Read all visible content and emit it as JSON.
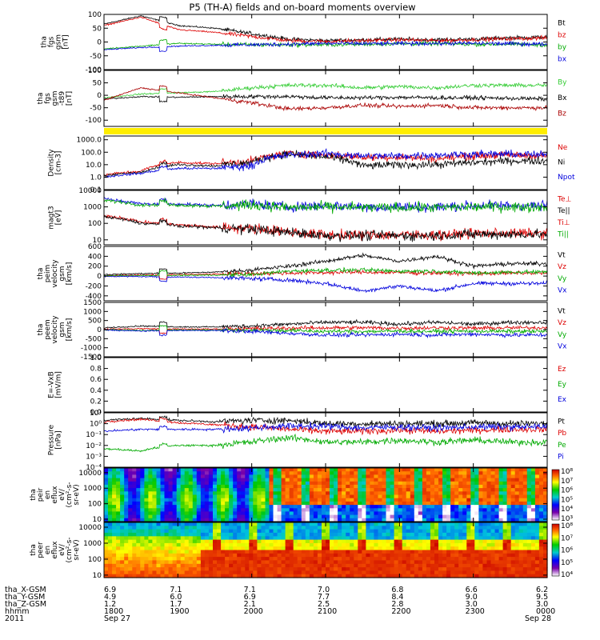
{
  "title": "P5 (TH-A) fields and on-board moments overview",
  "panels": [
    {
      "id": "fgs",
      "ylabel": [
        "tha",
        "fgs",
        "gsm",
        "[nT]"
      ],
      "ticks": [
        "100",
        "50",
        "0",
        "-50",
        "-100"
      ],
      "tick_vals": [
        100,
        50,
        0,
        -50,
        -100
      ],
      "ylim": [
        -100,
        100
      ],
      "scale": "linear",
      "legend": [
        {
          "label": "Bt",
          "color": "#000000"
        },
        {
          "label": "bz",
          "color": "#dd0000"
        },
        {
          "label": "by",
          "color": "#00aa00"
        },
        {
          "label": "bx",
          "color": "#0000dd"
        }
      ]
    },
    {
      "id": "fgs_t89",
      "ylabel": [
        "tha",
        "fgs",
        "gsm",
        "-t89",
        "[nT]"
      ],
      "ticks": [
        "100",
        "50",
        "0",
        "-50",
        "-100"
      ],
      "tick_vals": [
        100,
        50,
        0,
        -50,
        -100
      ],
      "ylim": [
        -125,
        100
      ],
      "scale": "linear",
      "legend": [
        {
          "label": "By",
          "color": "#33cc33"
        },
        {
          "label": "Bx",
          "color": "#000000"
        },
        {
          "label": "Bz",
          "color": "#aa0000"
        }
      ]
    },
    {
      "id": "density",
      "ylabel": [
        "Density",
        "[cm-3]"
      ],
      "ticks": [
        "1000.0",
        "100.0",
        "10.0",
        "1.0",
        "0.1"
      ],
      "tick_vals": [
        1000,
        100,
        10,
        1,
        0.1
      ],
      "ylim": [
        0.1,
        2000
      ],
      "scale": "log",
      "legend": [
        {
          "label": "Ne",
          "color": "#dd0000"
        },
        {
          "label": "Ni",
          "color": "#000000"
        },
        {
          "label": "Npot",
          "color": "#0000dd"
        }
      ]
    },
    {
      "id": "temp",
      "ylabel": [
        "magt3",
        "[eV]"
      ],
      "ticks": [
        "10000",
        "1000",
        "100",
        "10"
      ],
      "tick_vals": [
        10000,
        1000,
        100,
        10
      ],
      "ylim": [
        5,
        10000
      ],
      "scale": "log",
      "legend": [
        {
          "label": "Te⊥",
          "color": "#dd0000"
        },
        {
          "label": "Te||",
          "color": "#000000"
        },
        {
          "label": "Ti⊥",
          "color": "#dd0000"
        },
        {
          "label": "Ti||",
          "color": "#00aa00"
        }
      ]
    },
    {
      "id": "peim",
      "ylabel": [
        "tha",
        "peim",
        "velocity",
        "gsm",
        "[km/s]"
      ],
      "ticks": [
        "600",
        "400",
        "200",
        "0",
        "-200",
        "-400"
      ],
      "tick_vals": [
        600,
        400,
        200,
        0,
        -200,
        -400
      ],
      "ylim": [
        -500,
        600
      ],
      "scale": "linear",
      "legend": [
        {
          "label": "Vt",
          "color": "#000000"
        },
        {
          "label": "Vz",
          "color": "#dd0000"
        },
        {
          "label": "Vy",
          "color": "#00aa00"
        },
        {
          "label": "Vx",
          "color": "#0000dd"
        }
      ]
    },
    {
      "id": "peem",
      "ylabel": [
        "tha",
        "peem",
        "velocity",
        "gsm",
        "[km/s]"
      ],
      "ticks": [
        "1500",
        "1000",
        "500",
        "0",
        "-500",
        "-1000",
        "-1500"
      ],
      "tick_vals": [
        1500,
        1000,
        500,
        0,
        -500,
        -1000,
        -1500
      ],
      "ylim": [
        -1500,
        1500
      ],
      "scale": "linear",
      "legend": [
        {
          "label": "Vt",
          "color": "#000000"
        },
        {
          "label": "Vz",
          "color": "#dd0000"
        },
        {
          "label": "Vy",
          "color": "#00aa00"
        },
        {
          "label": "Vx",
          "color": "#0000dd"
        }
      ]
    },
    {
      "id": "efield",
      "ylabel": [
        "E=-VxB",
        "[mV/m]"
      ],
      "ticks": [
        "1.0",
        "0.8",
        "0.6",
        "0.4",
        "0.2",
        "0.0"
      ],
      "tick_vals": [
        1,
        0.8,
        0.6,
        0.4,
        0.2,
        0
      ],
      "ylim": [
        0,
        1
      ],
      "scale": "linear",
      "legend": [
        {
          "label": "Ez",
          "color": "#dd0000"
        },
        {
          "label": "Ey",
          "color": "#00aa00"
        },
        {
          "label": "Ex",
          "color": "#0000dd"
        }
      ]
    },
    {
      "id": "pressure",
      "ylabel": [
        "Pressure",
        "[nPa]"
      ],
      "ticks": [
        "10¹",
        "10⁰",
        "10⁻¹",
        "10⁻²",
        "10⁻³",
        "10⁻⁴"
      ],
      "tick_vals": [
        10,
        1,
        0.1,
        0.01,
        0.001,
        0.0001
      ],
      "ylim": [
        0.0001,
        10
      ],
      "scale": "log",
      "legend": [
        {
          "label": "Pt",
          "color": "#000000"
        },
        {
          "label": "Pb",
          "color": "#dd0000"
        },
        {
          "label": "Pe",
          "color": "#00aa00"
        },
        {
          "label": "Pi",
          "color": "#0000dd"
        }
      ]
    },
    {
      "id": "peir",
      "ylabel": [
        "tha",
        "peir",
        "en",
        "eflux",
        "eV/",
        "(cm²-s-",
        "sr-eV)"
      ],
      "ticks": [
        "10000",
        "1000",
        "100",
        "10"
      ],
      "tick_vals": [
        10000,
        1000,
        100,
        10
      ],
      "ylim": [
        7,
        20000
      ],
      "scale": "log",
      "colorbar": [
        "10⁸",
        "10⁷",
        "10⁶",
        "10⁵",
        "10⁴",
        "10³"
      ]
    },
    {
      "id": "peer",
      "ylabel": [
        "tha",
        "peer",
        "en",
        "eflux",
        "eV/",
        "(cm²-s-",
        "sr-eV)"
      ],
      "ticks": [
        "10000",
        "1000",
        "100",
        "10"
      ],
      "tick_vals": [
        10000,
        1000,
        100,
        10
      ],
      "ylim": [
        7,
        20000
      ],
      "scale": "log",
      "colorbar": [
        "10⁸",
        "10⁷",
        "10⁶",
        "10⁵",
        "10⁴"
      ]
    }
  ],
  "ephemeris": {
    "labels": [
      "tha_X-GSM",
      "tha_Y-GSM",
      "tha_Z-GSM",
      "hhmm",
      "2011"
    ],
    "columns": [
      {
        "x": "6.9",
        "y": "4.9",
        "z": "1.2",
        "hhmm": "1800",
        "date": "Sep 27"
      },
      {
        "x": "7.1",
        "y": "6.0",
        "z": "1.7",
        "hhmm": "1900",
        "date": ""
      },
      {
        "x": "7.1",
        "y": "6.9",
        "z": "2.1",
        "hhmm": "2000",
        "date": ""
      },
      {
        "x": "7.0",
        "y": "7.7",
        "z": "2.5",
        "hhmm": "2100",
        "date": ""
      },
      {
        "x": "6.8",
        "y": "8.4",
        "z": "2.8",
        "hhmm": "2200",
        "date": ""
      },
      {
        "x": "6.6",
        "y": "9.0",
        "z": "3.0",
        "hhmm": "2300",
        "date": ""
      },
      {
        "x": "6.2",
        "y": "9.5",
        "z": "3.0",
        "hhmm": "0000",
        "date": "Sep 28"
      }
    ]
  },
  "chart_data": {
    "type": "line",
    "title": "P5 (TH-A) fields and on-board moments overview",
    "x_range": [
      "2011-09-27 18:00",
      "2011-09-28 00:00"
    ],
    "x_ticks": [
      "1800",
      "1900",
      "2000",
      "2100",
      "2200",
      "2300",
      "0000"
    ],
    "x_hours": [
      0,
      0.5,
      1,
      1.5,
      2,
      2.5,
      3,
      3.5,
      4,
      4.5,
      5,
      5.5,
      6
    ],
    "panels": [
      {
        "name": "tha fgs gsm [nT]",
        "series": [
          {
            "name": "Bt",
            "values": [
              65,
              95,
              60,
              50,
              30,
              10,
              5,
              8,
              10,
              8,
              10,
              15,
              18
            ]
          },
          {
            "name": "bz",
            "values": [
              60,
              90,
              45,
              35,
              20,
              5,
              2,
              5,
              8,
              5,
              8,
              12,
              15
            ]
          },
          {
            "name": "by",
            "values": [
              -25,
              -15,
              -5,
              -8,
              -10,
              -10,
              -10,
              -8,
              -6,
              -6,
              -8,
              -8,
              -10
            ]
          },
          {
            "name": "bx",
            "values": [
              -28,
              -20,
              -15,
              -12,
              -10,
              -8,
              -5,
              -6,
              -6,
              -5,
              -5,
              -6,
              -8
            ]
          }
        ]
      },
      {
        "name": "tha fgs gsm-t89 [nT]",
        "series": [
          {
            "name": "By",
            "values": [
              -10,
              5,
              10,
              15,
              30,
              40,
              40,
              30,
              35,
              30,
              40,
              40,
              40
            ]
          },
          {
            "name": "Bx",
            "values": [
              -15,
              -5,
              -8,
              -5,
              -5,
              -5,
              -10,
              -10,
              -8,
              -10,
              -10,
              -12,
              -15
            ]
          },
          {
            "name": "Bz",
            "values": [
              -20,
              30,
              10,
              -10,
              -30,
              -55,
              -50,
              -40,
              -45,
              -40,
              -50,
              -50,
              -50
            ]
          }
        ]
      },
      {
        "name": "Density [cm-3]",
        "series": [
          {
            "name": "Ne",
            "values": [
              1.5,
              3,
              15,
              12,
              20,
              80,
              60,
              40,
              40,
              30,
              50,
              60,
              50
            ]
          },
          {
            "name": "Ni",
            "values": [
              1.2,
              2.5,
              10,
              8,
              15,
              70,
              40,
              8,
              10,
              10,
              15,
              20,
              20
            ]
          },
          {
            "name": "Npot",
            "values": [
              1,
              2,
              5,
              5,
              8,
              60,
              80,
              50,
              50,
              60,
              70,
              70,
              60
            ]
          }
        ]
      },
      {
        "name": "magt3 [eV]",
        "series": [
          {
            "name": "Te⊥",
            "values": [
              300,
              120,
              80,
              60,
              50,
              30,
              20,
              20,
              20,
              20,
              25,
              25,
              25
            ]
          },
          {
            "name": "Te||",
            "values": [
              250,
              100,
              70,
              55,
              45,
              28,
              18,
              18,
              18,
              18,
              22,
              22,
              22
            ]
          },
          {
            "name": "Ti⊥",
            "values": [
              3000,
              1500,
              1500,
              1200,
              1500,
              1000,
              1200,
              1000,
              1000,
              1000,
              1200,
              1200,
              1200
            ]
          },
          {
            "name": "Ti||",
            "values": [
              2500,
              1300,
              1300,
              1100,
              1300,
              900,
              1000,
              900,
              900,
              900,
              1000,
              1000,
              1000
            ]
          }
        ]
      },
      {
        "name": "tha peim velocity gsm [km/s]",
        "series": [
          {
            "name": "Vt",
            "values": [
              30,
              50,
              60,
              80,
              120,
              200,
              300,
              420,
              300,
              400,
              200,
              250,
              250
            ]
          },
          {
            "name": "Vz",
            "values": [
              10,
              20,
              30,
              40,
              50,
              60,
              70,
              80,
              70,
              60,
              50,
              60,
              60
            ]
          },
          {
            "name": "Vy",
            "values": [
              5,
              10,
              15,
              20,
              30,
              100,
              120,
              120,
              100,
              100,
              60,
              80,
              80
            ]
          },
          {
            "name": "Vx",
            "values": [
              -5,
              -10,
              -20,
              -30,
              -50,
              -80,
              -150,
              -300,
              -200,
              -300,
              -150,
              -150,
              -150
            ]
          }
        ]
      },
      {
        "name": "tha peem velocity gsm [km/s]",
        "series": [
          {
            "name": "Vt",
            "values": [
              100,
              200,
              150,
              150,
              200,
              300,
              400,
              400,
              300,
              400,
              300,
              400,
              400
            ]
          },
          {
            "name": "Vz",
            "values": [
              20,
              50,
              30,
              30,
              50,
              80,
              100,
              100,
              80,
              100,
              80,
              100,
              100
            ]
          },
          {
            "name": "Vy",
            "values": [
              0,
              -50,
              -20,
              -20,
              -30,
              -50,
              -100,
              -100,
              -80,
              -100,
              -80,
              -100,
              -100
            ]
          },
          {
            "name": "Vx",
            "values": [
              -20,
              -80,
              -50,
              -50,
              -100,
              -200,
              -300,
              -300,
              -250,
              -300,
              -250,
              -300,
              -300
            ]
          }
        ]
      },
      {
        "name": "E=-VxB [mV/m]",
        "series": [
          {
            "name": "Ez",
            "values": []
          },
          {
            "name": "Ey",
            "values": []
          },
          {
            "name": "Ex",
            "values": []
          }
        ]
      },
      {
        "name": "Pressure [nPa]",
        "series": [
          {
            "name": "Pt",
            "values": [
              2,
              3,
              2,
              1.5,
              2,
              2,
              1,
              1,
              1,
              1,
              1.2,
              1,
              1
            ]
          },
          {
            "name": "Pb",
            "values": [
              1.5,
              2.5,
              1.2,
              0.8,
              0.5,
              0.3,
              0.2,
              0.2,
              0.25,
              0.2,
              0.25,
              0.3,
              0.3
            ]
          },
          {
            "name": "Pe",
            "values": [
              0.005,
              0.003,
              0.01,
              0.01,
              0.02,
              0.05,
              0.02,
              0.02,
              0.03,
              0.02,
              0.03,
              0.02,
              0.02
            ]
          },
          {
            "name": "Pi",
            "values": [
              0.2,
              0.3,
              0.3,
              0.3,
              0.4,
              0.6,
              0.6,
              0.4,
              0.5,
              0.4,
              0.5,
              0.5,
              0.5
            ]
          }
        ]
      }
    ],
    "spectrograms": [
      {
        "name": "tha peir en eflux",
        "type": "heatmap",
        "ylim": [
          7,
          20000
        ],
        "colorbar": [
          "10³",
          "10⁸"
        ]
      },
      {
        "name": "tha peer en eflux",
        "type": "heatmap",
        "ylim": [
          7,
          20000
        ],
        "colorbar": [
          "10⁴",
          "10⁸"
        ]
      }
    ]
  }
}
